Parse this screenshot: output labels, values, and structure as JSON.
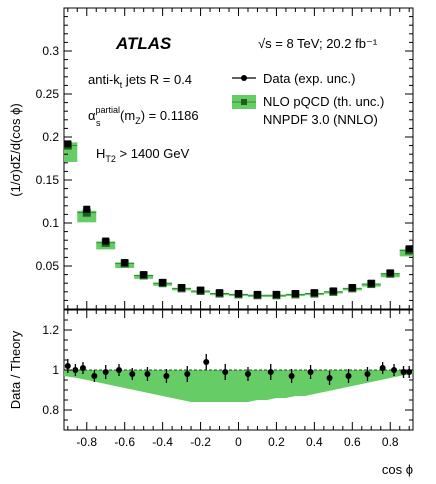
{
  "chart_data": [
    {
      "type": "scatter",
      "panel": "main",
      "ylabel": "(1/σ)dΣ/d(cos ϕ)",
      "ylim": [
        0,
        0.35
      ],
      "yticks": [
        "0.05",
        "0.1",
        "0.15",
        "0.2",
        "0.25",
        "0.3"
      ],
      "yticks_values": [
        0.05,
        0.1,
        0.15,
        0.2,
        0.25,
        0.3
      ],
      "xlim": [
        -0.92,
        0.92
      ],
      "grid": false,
      "legend_position": "top-right",
      "annotations": {
        "experiment": "ATLAS",
        "energy": "√s = 8 TeV; 20.2 fb⁻¹",
        "jets_prefix": "anti-k",
        "jets_sub": "t",
        "jets_suffix": " jets R = 0.4",
        "alpha": "α",
        "alpha_sup": "partial",
        "alpha_sub": "s",
        "alpha_mid": "(m",
        "alpha_msub": "Z",
        "alpha_tail": ") = 0.1186",
        "ht_prefix": "H",
        "ht_sub": "T2",
        "ht_tail": " > 1400 GeV"
      },
      "legend": {
        "data_label": "Data (exp. unc.)",
        "theory_label": "NLO pQCD (th. unc.)",
        "pdf_label": "NNPDF 3.0 (NNLO)"
      },
      "series": [
        {
          "name": "Data (exp. unc.)",
          "x": [
            -0.9,
            -0.8,
            -0.7,
            -0.6,
            -0.5,
            -0.4,
            -0.3,
            -0.2,
            -0.1,
            0.0,
            0.1,
            0.2,
            0.3,
            0.4,
            0.5,
            0.6,
            0.7,
            0.8,
            0.9
          ],
          "values": [
            0.192,
            0.116,
            0.079,
            0.054,
            0.04,
            0.031,
            0.025,
            0.022,
            0.019,
            0.018,
            0.017,
            0.017,
            0.018,
            0.019,
            0.021,
            0.025,
            0.03,
            0.042,
            0.07
          ]
        },
        {
          "name": "NLO pQCD (th. unc.)",
          "x": [
            -0.9,
            -0.8,
            -0.7,
            -0.6,
            -0.5,
            -0.4,
            -0.3,
            -0.2,
            -0.1,
            0.0,
            0.1,
            0.2,
            0.3,
            0.4,
            0.5,
            0.6,
            0.7,
            0.8,
            0.9
          ],
          "values": [
            0.19,
            0.112,
            0.077,
            0.053,
            0.039,
            0.03,
            0.024,
            0.021,
            0.018,
            0.017,
            0.016,
            0.016,
            0.017,
            0.018,
            0.02,
            0.024,
            0.029,
            0.041,
            0.068
          ]
        }
      ]
    },
    {
      "type": "scatter",
      "panel": "ratio",
      "ylabel": "Data / Theory",
      "xlabel": "cos ϕ",
      "ylim": [
        0.7,
        1.3
      ],
      "yticks": [
        "0.8",
        "1",
        "1.2"
      ],
      "yticks_values": [
        0.8,
        1.0,
        1.2
      ],
      "xlim": [
        -0.92,
        0.92
      ],
      "xticks": [
        "-0.8",
        "-0.6",
        "-0.4",
        "-0.2",
        "0",
        "0.2",
        "0.4",
        "0.6",
        "0.8"
      ],
      "xticks_values": [
        -0.8,
        -0.6,
        -0.4,
        -0.2,
        0,
        0.2,
        0.4,
        0.6,
        0.8
      ],
      "band_x": [
        -0.92,
        -0.85,
        -0.8,
        -0.75,
        -0.7,
        -0.65,
        -0.6,
        -0.55,
        -0.5,
        -0.45,
        -0.4,
        -0.35,
        -0.3,
        -0.25,
        -0.2,
        -0.15,
        -0.1,
        -0.05,
        0.0,
        0.05,
        0.1,
        0.15,
        0.2,
        0.25,
        0.3,
        0.35,
        0.4,
        0.45,
        0.5,
        0.55,
        0.6,
        0.65,
        0.7,
        0.75,
        0.8,
        0.85,
        0.92
      ],
      "band_upper": [
        1.0,
        1.0,
        1.0,
        1.0,
        1.0,
        1.0,
        1.0,
        1.0,
        1.0,
        1.0,
        1.0,
        1.0,
        1.0,
        1.0,
        1.0,
        1.0,
        1.0,
        1.0,
        1.0,
        1.0,
        1.0,
        1.0,
        1.0,
        1.0,
        1.0,
        1.0,
        1.0,
        1.0,
        1.0,
        1.0,
        1.0,
        1.0,
        1.0,
        1.0,
        1.0,
        1.0,
        1.0
      ],
      "band_lower": [
        0.97,
        0.96,
        0.95,
        0.94,
        0.93,
        0.92,
        0.91,
        0.9,
        0.89,
        0.88,
        0.87,
        0.86,
        0.85,
        0.84,
        0.84,
        0.84,
        0.84,
        0.84,
        0.84,
        0.84,
        0.85,
        0.85,
        0.86,
        0.86,
        0.87,
        0.87,
        0.88,
        0.89,
        0.9,
        0.91,
        0.92,
        0.93,
        0.94,
        0.95,
        0.96,
        0.97,
        0.98
      ],
      "ratio_points": {
        "x": [
          -0.9,
          -0.86,
          -0.82,
          -0.76,
          -0.7,
          -0.63,
          -0.56,
          -0.48,
          -0.38,
          -0.27,
          -0.17,
          -0.07,
          0.05,
          0.17,
          0.28,
          0.38,
          0.48,
          0.58,
          0.68,
          0.76,
          0.82,
          0.87,
          0.9
        ],
        "values": [
          1.02,
          1.0,
          1.01,
          0.97,
          0.99,
          1.0,
          0.98,
          0.98,
          0.97,
          0.98,
          1.04,
          0.99,
          0.98,
          0.99,
          0.97,
          0.99,
          0.96,
          0.97,
          0.98,
          1.01,
          1.0,
          0.99,
          0.99
        ],
        "errors": [
          0.035,
          0.03,
          0.03,
          0.03,
          0.035,
          0.03,
          0.03,
          0.035,
          0.035,
          0.04,
          0.04,
          0.04,
          0.035,
          0.04,
          0.035,
          0.035,
          0.035,
          0.035,
          0.035,
          0.03,
          0.03,
          0.03,
          0.03
        ]
      }
    }
  ],
  "colors": {
    "band_fill": "#66cc66",
    "band_edge": "#2f8f2f",
    "theory_marker": "#1f5e1f",
    "data_marker": "#000000",
    "axes": "#000000"
  }
}
